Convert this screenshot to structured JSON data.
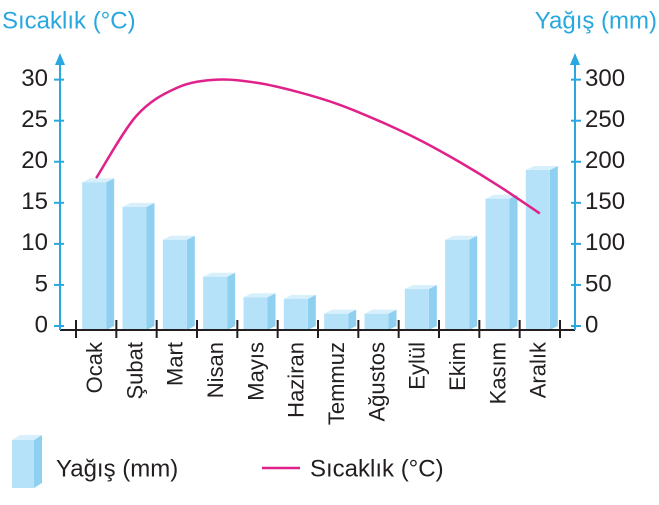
{
  "chart_data": {
    "type": "bar-line",
    "y_label": "Sıcaklık (°C)",
    "y2_label": "Yağış (mm)",
    "categories": [
      "Ocak",
      "Şubat",
      "Mart",
      "Nisan",
      "Mayıs",
      "Haziran",
      "Temmuz",
      "Ağustos",
      "Eylül",
      "Ekim",
      "Kasım",
      "Aralık"
    ],
    "series": [
      {
        "name": "Yağış (mm)",
        "type": "bar",
        "axis": "y2",
        "color": "#b5e2f8",
        "values": [
          175,
          145,
          105,
          60,
          35,
          33,
          15,
          15,
          45,
          105,
          155,
          190
        ]
      },
      {
        "name": "Sıcaklık (°C)",
        "type": "line",
        "axis": "y",
        "color": "#e0218a",
        "values": [
          18,
          25.6,
          29,
          30,
          29.6,
          28.5,
          27,
          25,
          22.7,
          20,
          17,
          13.7
        ]
      }
    ],
    "ylim": [
      0,
      33
    ],
    "yticks": [
      0,
      5,
      10,
      15,
      20,
      25,
      30
    ],
    "y2lim": [
      0,
      330
    ],
    "y2ticks": [
      0,
      50,
      100,
      150,
      200,
      250,
      300
    ],
    "legend": "bottom-left"
  }
}
